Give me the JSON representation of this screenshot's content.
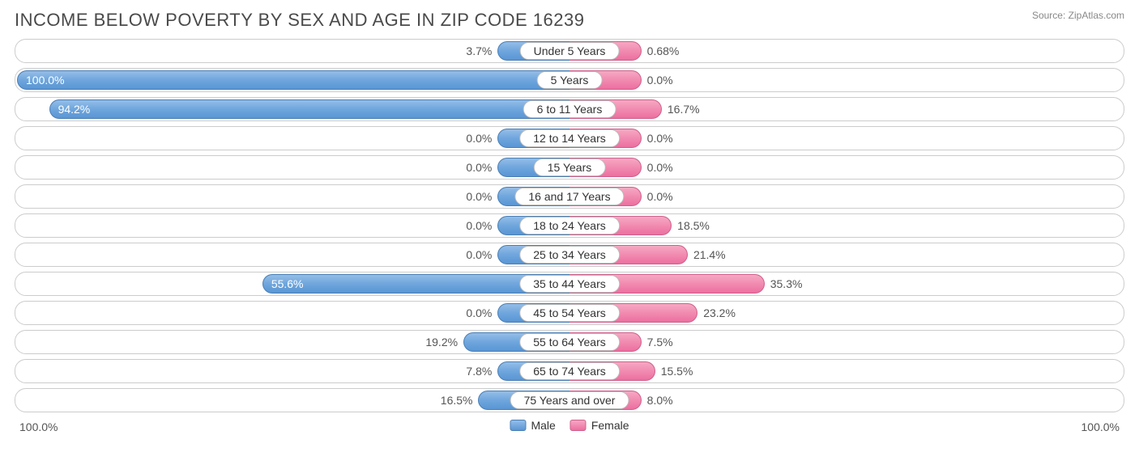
{
  "title": "INCOME BELOW POVERTY BY SEX AND AGE IN ZIP CODE 16239",
  "source": "Source: ZipAtlas.com",
  "chart": {
    "type": "diverging-bar",
    "axis_max": 100.0,
    "min_bar_pct": 13.0,
    "axis_label_left": "100.0%",
    "axis_label_right": "100.0%",
    "colors": {
      "male_top": "#94bde8",
      "male_bottom": "#5a96d4",
      "male_border": "#4a7fb5",
      "female_top": "#f6a8c3",
      "female_bottom": "#ec6fa0",
      "female_border": "#d05f8c",
      "row_border": "#cccccc",
      "text": "#555555",
      "title_color": "#4a4a4a",
      "background": "#ffffff"
    },
    "legend": {
      "male": "Male",
      "female": "Female"
    },
    "rows": [
      {
        "category": "Under 5 Years",
        "male": 3.7,
        "male_label": "3.7%",
        "female": 0.68,
        "female_label": "0.68%"
      },
      {
        "category": "5 Years",
        "male": 100.0,
        "male_label": "100.0%",
        "female": 0.0,
        "female_label": "0.0%"
      },
      {
        "category": "6 to 11 Years",
        "male": 94.2,
        "male_label": "94.2%",
        "female": 16.7,
        "female_label": "16.7%"
      },
      {
        "category": "12 to 14 Years",
        "male": 0.0,
        "male_label": "0.0%",
        "female": 0.0,
        "female_label": "0.0%"
      },
      {
        "category": "15 Years",
        "male": 0.0,
        "male_label": "0.0%",
        "female": 0.0,
        "female_label": "0.0%"
      },
      {
        "category": "16 and 17 Years",
        "male": 0.0,
        "male_label": "0.0%",
        "female": 0.0,
        "female_label": "0.0%"
      },
      {
        "category": "18 to 24 Years",
        "male": 0.0,
        "male_label": "0.0%",
        "female": 18.5,
        "female_label": "18.5%"
      },
      {
        "category": "25 to 34 Years",
        "male": 0.0,
        "male_label": "0.0%",
        "female": 21.4,
        "female_label": "21.4%"
      },
      {
        "category": "35 to 44 Years",
        "male": 55.6,
        "male_label": "55.6%",
        "female": 35.3,
        "female_label": "35.3%"
      },
      {
        "category": "45 to 54 Years",
        "male": 0.0,
        "male_label": "0.0%",
        "female": 23.2,
        "female_label": "23.2%"
      },
      {
        "category": "55 to 64 Years",
        "male": 19.2,
        "male_label": "19.2%",
        "female": 7.5,
        "female_label": "7.5%"
      },
      {
        "category": "65 to 74 Years",
        "male": 7.8,
        "male_label": "7.8%",
        "female": 15.5,
        "female_label": "15.5%"
      },
      {
        "category": "75 Years and over",
        "male": 16.5,
        "male_label": "16.5%",
        "female": 8.0,
        "female_label": "8.0%"
      }
    ]
  }
}
